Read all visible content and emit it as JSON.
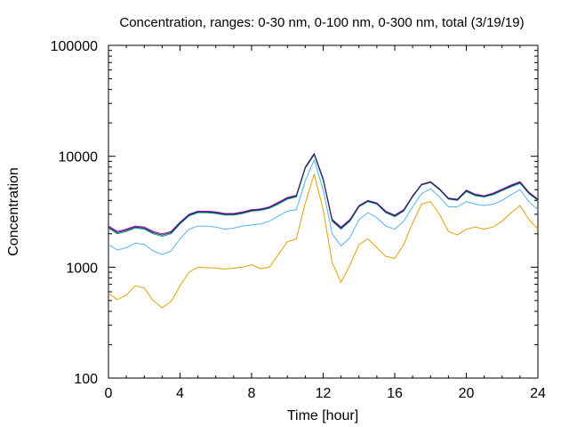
{
  "chart_data": {
    "type": "line",
    "title": "Concentration, ranges: 0-30 nm, 0-100 nm, 0-300 nm, total (3/19/19)",
    "xlabel": "Time [hour]",
    "ylabel": "Concentration",
    "xlim": [
      0,
      24
    ],
    "ylim": [
      100,
      100000
    ],
    "y_scale": "log",
    "grid": false,
    "x_ticks": [
      0,
      4,
      8,
      12,
      16,
      20,
      24
    ],
    "x_tick_labels": [
      "0",
      "4",
      "8",
      "12",
      "16",
      "20",
      "24"
    ],
    "y_ticks": [
      100,
      1000,
      10000,
      100000
    ],
    "y_tick_labels": [
      "100",
      "1000",
      "10000",
      "100000"
    ],
    "series": [
      {
        "color": "#e69f00",
        "x": [
          0,
          0.5,
          1,
          1.5,
          2,
          2.5,
          3,
          3.5,
          4,
          4.5,
          5,
          5.5,
          6,
          6.5,
          7,
          7.5,
          8,
          8.5,
          9,
          9.5,
          10,
          10.5,
          11,
          11.5,
          12,
          12.5,
          13,
          13.5,
          14,
          14.5,
          15,
          15.5,
          16,
          16.5,
          17,
          17.5,
          18,
          18.5,
          19,
          19.5,
          20,
          20.5,
          21,
          21.5,
          22,
          22.5,
          23,
          23.5,
          24
        ],
        "y": [
          580,
          510,
          560,
          680,
          650,
          500,
          430,
          490,
          680,
          900,
          1000,
          990,
          980,
          960,
          980,
          1000,
          1050,
          970,
          1000,
          1300,
          1700,
          1800,
          3800,
          6900,
          3300,
          1100,
          730,
          1050,
          1600,
          1800,
          1500,
          1250,
          1200,
          1600,
          2500,
          3700,
          3900,
          3000,
          2100,
          1950,
          2200,
          2300,
          2200,
          2300,
          2600,
          3100,
          3600,
          2700,
          2200
        ]
      },
      {
        "color": "#56b4e9",
        "x": [
          0,
          0.5,
          1,
          1.5,
          2,
          2.5,
          3,
          3.5,
          4,
          4.5,
          5,
          5.5,
          6,
          6.5,
          7,
          7.5,
          8,
          8.5,
          9,
          9.5,
          10,
          10.5,
          11,
          11.5,
          12,
          12.5,
          13,
          13.5,
          14,
          14.5,
          15,
          15.5,
          16,
          16.5,
          17,
          17.5,
          18,
          18.5,
          19,
          19.5,
          20,
          20.5,
          21,
          21.5,
          22,
          22.5,
          23,
          23.5,
          24
        ],
        "y": [
          1600,
          1430,
          1500,
          1650,
          1600,
          1400,
          1300,
          1400,
          1800,
          2200,
          2350,
          2350,
          2300,
          2200,
          2250,
          2350,
          2400,
          2450,
          2600,
          2900,
          3200,
          3300,
          6000,
          9300,
          5000,
          2000,
          1550,
          1850,
          2700,
          3100,
          2800,
          2350,
          2200,
          2600,
          3500,
          4600,
          5100,
          4300,
          3500,
          3500,
          3900,
          3700,
          3600,
          3700,
          4000,
          4500,
          5000,
          3900,
          3300
        ]
      },
      {
        "color": "#009e73",
        "x": [
          0,
          0.5,
          1,
          1.5,
          2,
          2.5,
          3,
          3.5,
          4,
          4.5,
          5,
          5.5,
          6,
          6.5,
          7,
          7.5,
          8,
          8.5,
          9,
          9.5,
          10,
          10.5,
          11,
          11.5,
          12,
          12.5,
          13,
          13.5,
          14,
          14.5,
          15,
          15.5,
          16,
          16.5,
          17,
          17.5,
          18,
          18.5,
          19,
          19.5,
          20,
          20.5,
          21,
          21.5,
          22,
          22.5,
          23,
          23.5,
          24
        ],
        "y": [
          2250,
          2000,
          2100,
          2250,
          2200,
          2000,
          1900,
          2000,
          2450,
          2900,
          3100,
          3100,
          3050,
          2950,
          2950,
          3050,
          3200,
          3250,
          3400,
          3700,
          4100,
          4300,
          7800,
          10300,
          6100,
          2600,
          2200,
          2600,
          3500,
          3900,
          3700,
          3100,
          2850,
          3200,
          4300,
          5500,
          5800,
          5000,
          4100,
          4000,
          4800,
          4400,
          4300,
          4500,
          4900,
          5300,
          5700,
          4600,
          4000
        ]
      },
      {
        "color": "#9400d3",
        "x": [
          0,
          0.5,
          1,
          1.5,
          2,
          2.5,
          3,
          3.5,
          4,
          4.5,
          5,
          5.5,
          6,
          6.5,
          7,
          7.5,
          8,
          8.5,
          9,
          9.5,
          10,
          10.5,
          11,
          11.5,
          12,
          12.5,
          13,
          13.5,
          14,
          14.5,
          15,
          15.5,
          16,
          16.5,
          17,
          17.5,
          18,
          18.5,
          19,
          19.5,
          20,
          20.5,
          21,
          21.5,
          22,
          22.5,
          23,
          23.5,
          24
        ],
        "y": [
          2350,
          2100,
          2200,
          2350,
          2300,
          2100,
          2000,
          2100,
          2550,
          3000,
          3200,
          3200,
          3150,
          3050,
          3050,
          3150,
          3300,
          3350,
          3500,
          3850,
          4250,
          4450,
          8000,
          10600,
          6300,
          2700,
          2300,
          2700,
          3600,
          4000,
          3800,
          3200,
          2950,
          3300,
          4400,
          5600,
          5900,
          5100,
          4200,
          4100,
          4950,
          4550,
          4400,
          4650,
          5050,
          5500,
          5900,
          4750,
          4100
        ]
      },
      {
        "color": "#1f2a44",
        "x": [
          0,
          0.5,
          1,
          1.5,
          2,
          2.5,
          3,
          3.5,
          4,
          4.5,
          5,
          5.5,
          6,
          6.5,
          7,
          7.5,
          8,
          8.5,
          9,
          9.5,
          10,
          10.5,
          11,
          11.5,
          12,
          12.5,
          13,
          13.5,
          14,
          14.5,
          15,
          15.5,
          16,
          16.5,
          17,
          17.5,
          18,
          18.5,
          19,
          19.5,
          20,
          20.5,
          21,
          21.5,
          22,
          22.5,
          23,
          23.5,
          24
        ],
        "y": [
          2300,
          2050,
          2150,
          2300,
          2250,
          2050,
          1950,
          2050,
          2500,
          2950,
          3150,
          3150,
          3100,
          3000,
          3000,
          3100,
          3250,
          3300,
          3450,
          3780,
          4180,
          4380,
          7900,
          10450,
          6200,
          2650,
          2250,
          2650,
          3550,
          3950,
          3750,
          3150,
          2900,
          3250,
          4350,
          5550,
          5850,
          5050,
          4150,
          4050,
          4880,
          4480,
          4350,
          4580,
          4980,
          5400,
          5800,
          4680,
          4050
        ]
      }
    ]
  }
}
